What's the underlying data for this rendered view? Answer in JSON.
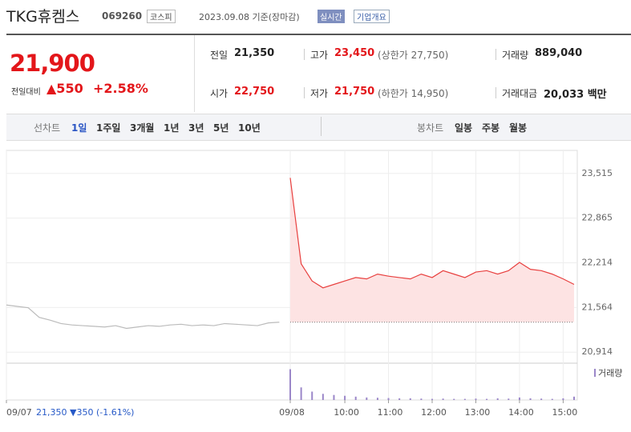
{
  "header": {
    "name": "TKG휴켐스",
    "code": "069260",
    "market": "코스피",
    "date": "2023.09.08 기준(장마감)",
    "realtime": "실시간",
    "overview": "기업개요"
  },
  "price": {
    "current": "21,900",
    "change_label": "전일대비",
    "change": "▲550",
    "rate": "+2.58%"
  },
  "stats": [
    {
      "label": "전일",
      "value": "21,350"
    },
    {
      "label": "고가",
      "value": "23,450",
      "note": "(상한가 27,750)"
    },
    {
      "label": "거래량",
      "value": "889,040"
    },
    {
      "label": "시가",
      "value": "22,750"
    },
    {
      "label": "저가",
      "value": "21,750",
      "note": "(하한가 14,950)"
    },
    {
      "label": "거래대금",
      "value": "20,033 백만"
    }
  ],
  "tabs": {
    "line_label": "선차트",
    "line": [
      "1일",
      "1주일",
      "3개월",
      "1년",
      "3년",
      "5년",
      "10년"
    ],
    "candle_label": "봉차트",
    "candle": [
      "일봉",
      "주봉",
      "월봉"
    ]
  },
  "footer": {
    "prev_price": "21,350",
    "prev_change": "▼350",
    "prev_rate": "(-1.61%)"
  },
  "chart_data": {
    "type": "line",
    "categories": [
      "09/07",
      null,
      null,
      null,
      null,
      null,
      null,
      null,
      null,
      null,
      null,
      null,
      null,
      null,
      null,
      null,
      null,
      null,
      null,
      null,
      null,
      null,
      null,
      null,
      null,
      null,
      "09/08",
      null,
      null,
      null,
      null,
      "10:00",
      null,
      null,
      null,
      "11:00",
      null,
      null,
      null,
      "12:00",
      null,
      null,
      null,
      "13:00",
      null,
      null,
      null,
      "14:00",
      null,
      null,
      null,
      "15:00",
      null
    ],
    "series": [
      {
        "color": "#bbbbbb",
        "values": [
          21600,
          21580,
          21560,
          21420,
          21380,
          21330,
          21310,
          21300,
          21290,
          21280,
          21300,
          21260,
          21280,
          21300,
          21290,
          21310,
          21320,
          21300,
          21310,
          21300,
          21330,
          21320,
          21310,
          21300,
          21340,
          21350,
          null,
          null,
          null,
          null,
          null,
          null,
          null,
          null,
          null,
          null,
          null,
          null,
          null,
          null,
          null,
          null,
          null,
          null,
          null,
          null,
          null,
          null,
          null,
          null,
          null,
          null,
          null
        ]
      },
      {
        "color": "#e8403f",
        "values": [
          null,
          null,
          null,
          null,
          null,
          null,
          null,
          null,
          null,
          null,
          null,
          null,
          null,
          null,
          null,
          null,
          null,
          null,
          null,
          null,
          null,
          null,
          null,
          null,
          null,
          null,
          23450,
          22200,
          21950,
          21850,
          21900,
          21950,
          22000,
          21980,
          22050,
          22020,
          22000,
          21980,
          22050,
          22000,
          22100,
          22050,
          22000,
          22080,
          22100,
          22050,
          22100,
          22220,
          22120,
          22100,
          22050,
          21980,
          21900
        ]
      }
    ],
    "prev_close": 21350,
    "ylim": [
      20800,
      23850
    ],
    "yticks": [
      {
        "value": 20914,
        "label": "20,914"
      },
      {
        "value": 21564,
        "label": "21,564"
      },
      {
        "value": 22214,
        "label": "22,214"
      },
      {
        "value": 22865,
        "label": "22,865"
      },
      {
        "value": 23515,
        "label": "23,515"
      }
    ],
    "grid": true,
    "volume": {
      "name": "거래량",
      "color": "#9b87c9",
      "ylim": [
        0,
        120000
      ],
      "values": [
        null,
        null,
        null,
        null,
        null,
        null,
        null,
        null,
        null,
        null,
        null,
        null,
        null,
        null,
        null,
        null,
        null,
        null,
        null,
        null,
        null,
        null,
        null,
        null,
        null,
        null,
        110000,
        45000,
        30000,
        22000,
        18000,
        15000,
        12000,
        9000,
        8000,
        7000,
        6000,
        6000,
        5000,
        4000,
        5000,
        4000,
        4000,
        5000,
        4000,
        6000,
        5000,
        9000,
        6000,
        5000,
        4000,
        6000,
        12000
      ]
    }
  }
}
